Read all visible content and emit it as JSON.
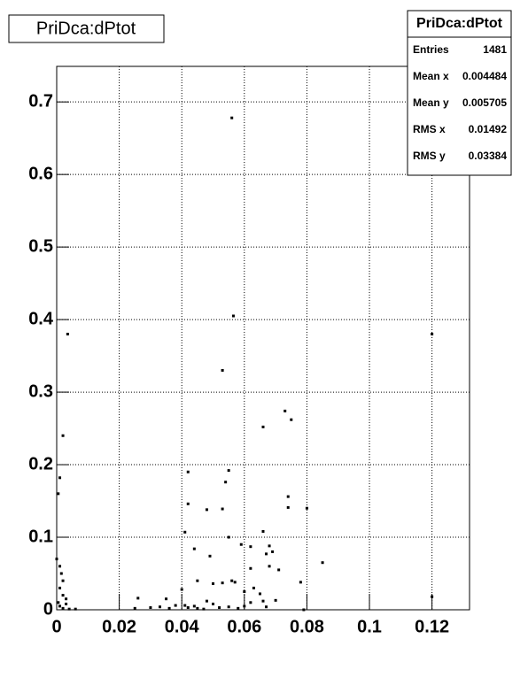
{
  "chart_data": {
    "type": "scatter",
    "title": "PriDca:dPtot",
    "stats": {
      "title": "PriDca:dPtot",
      "rows": [
        {
          "label": "Entries",
          "value": 1481
        },
        {
          "label": "Mean x",
          "value": 0.004484
        },
        {
          "label": "Mean y",
          "value": 0.005705
        },
        {
          "label": "RMS x",
          "value": 0.01492
        },
        {
          "label": "RMS y",
          "value": 0.03384
        }
      ]
    },
    "xlim": [
      0,
      0.132
    ],
    "ylim": [
      0,
      0.749
    ],
    "xticks": [
      0,
      0.02,
      0.04,
      0.06,
      0.08,
      0.1,
      0.12
    ],
    "yticks": [
      0,
      0.1,
      0.2,
      0.3,
      0.4,
      0.5,
      0.6,
      0.7
    ],
    "grid": true,
    "color": "#000000",
    "x": [
      0.056,
      0.0565,
      0.0035,
      0.12,
      0.053,
      0.073,
      0.075,
      0.066,
      0.002,
      0.001,
      0.0005,
      0.042,
      0.055,
      0.054,
      0.074,
      0.042,
      0.074,
      0.08,
      0.048,
      0.053,
      0.041,
      0.066,
      0.055,
      0.059,
      0.062,
      0.068,
      0.044,
      0.049,
      0.067,
      0.069,
      0.085,
      0.068,
      0.062,
      0.071,
      0.0,
      0.001,
      0.078,
      0.045,
      0.056,
      0.053,
      0.05,
      0.057,
      0.063,
      0.06,
      0.065,
      0.04,
      0.12,
      0.026,
      0.035,
      0.048,
      0.05,
      0.044,
      0.045,
      0.047,
      0.052,
      0.055,
      0.062,
      0.066,
      0.07,
      0.058,
      0.03,
      0.033,
      0.038,
      0.036,
      0.079,
      0.002,
      0.001,
      0.002,
      0.003,
      0.0005,
      0.001,
      0.002,
      0.004,
      0.006,
      0.003,
      0.0015,
      0.025,
      0.042,
      0.041,
      0.06,
      0.067
    ],
    "y": [
      0.678,
      0.405,
      0.38,
      0.38,
      0.33,
      0.274,
      0.262,
      0.252,
      0.24,
      0.182,
      0.16,
      0.19,
      0.192,
      0.176,
      0.156,
      0.146,
      0.141,
      0.14,
      0.138,
      0.139,
      0.107,
      0.108,
      0.1,
      0.09,
      0.087,
      0.088,
      0.084,
      0.074,
      0.077,
      0.08,
      0.065,
      0.06,
      0.057,
      0.055,
      0.07,
      0.06,
      0.038,
      0.04,
      0.04,
      0.037,
      0.036,
      0.038,
      0.03,
      0.025,
      0.022,
      0.028,
      0.018,
      0.016,
      0.015,
      0.012,
      0.008,
      0.005,
      0.002,
      0.001,
      0.003,
      0.004,
      0.01,
      0.012,
      0.013,
      0.002,
      0.003,
      0.004,
      0.006,
      0.002,
      0.0,
      0.04,
      0.03,
      0.02,
      0.015,
      0.01,
      0.005,
      0.002,
      0.001,
      0.001,
      0.008,
      0.05,
      0.002,
      0.003,
      0.006,
      0.005,
      0.004
    ]
  }
}
